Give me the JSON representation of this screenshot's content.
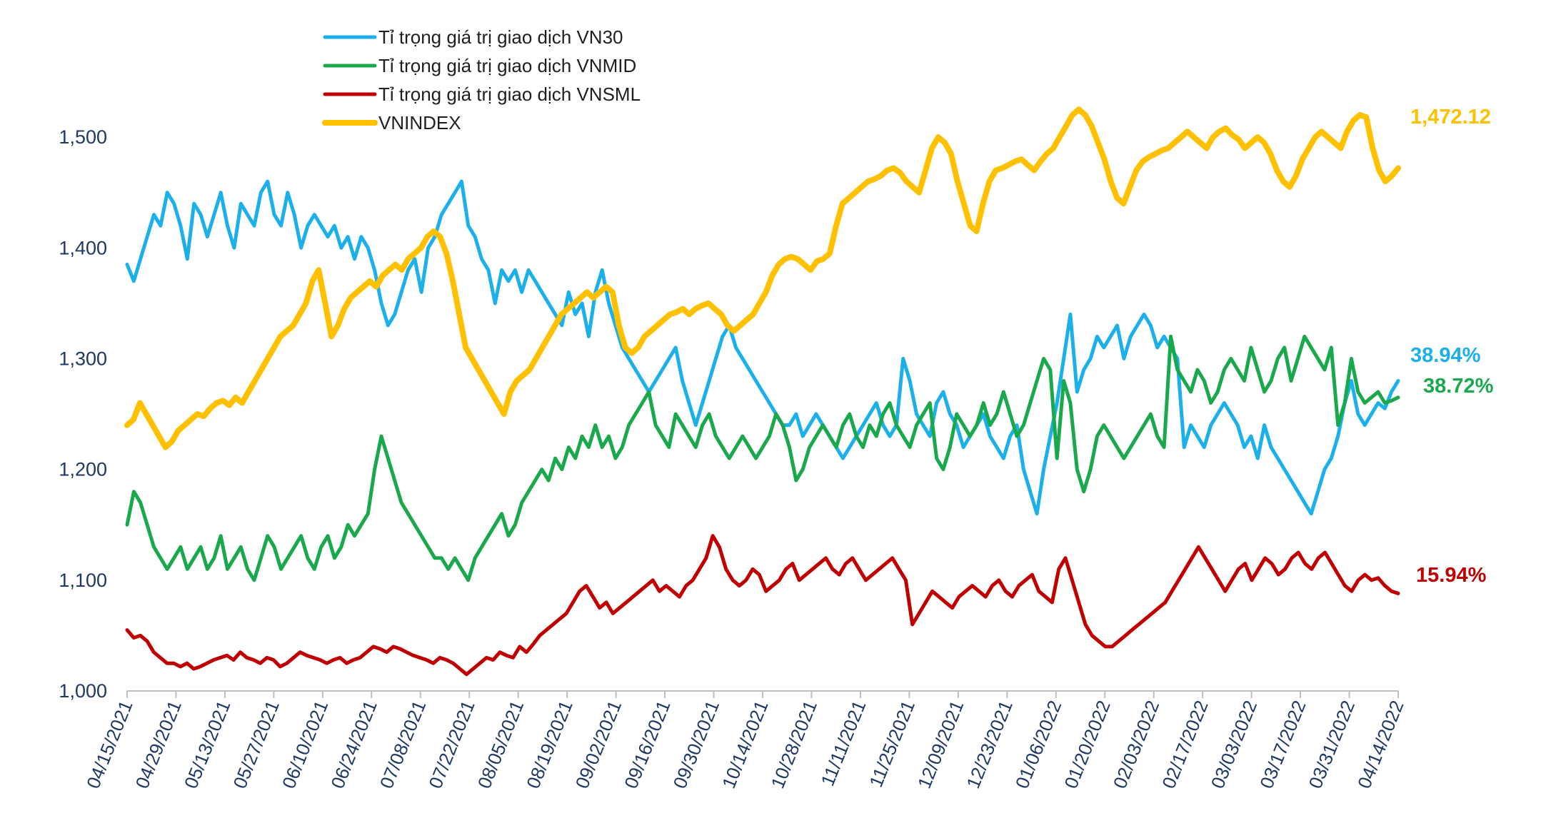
{
  "colors": {
    "vn30": "#1cb0ea",
    "vnmid": "#1aa84c",
    "vnsml": "#c00000",
    "vnindex": "#ffc000",
    "axis": "#1f3864"
  },
  "chart_data": {
    "type": "line",
    "x_start": "04/15/2021",
    "x_end": "04/14/2022",
    "x_ticks": [
      "04/15/2021",
      "04/29/2021",
      "05/13/2021",
      "05/27/2021",
      "06/10/2021",
      "06/24/2021",
      "07/08/2021",
      "07/22/2021",
      "08/05/2021",
      "08/19/2021",
      "09/02/2021",
      "09/16/2021",
      "09/30/2021",
      "10/14/2021",
      "10/28/2021",
      "11/11/2021",
      "11/25/2021",
      "12/09/2021",
      "12/23/2021",
      "01/06/2022",
      "01/20/2022",
      "02/03/2022",
      "02/17/2022",
      "03/03/2022",
      "03/17/2022",
      "03/31/2022",
      "04/14/2022"
    ],
    "y_ticks": [
      "1,000",
      "1,100",
      "1,200",
      "1,300",
      "1,400",
      "1,500"
    ],
    "ylim": [
      1000,
      1540
    ],
    "legend": "top-left",
    "series": [
      {
        "key": "vn30",
        "name": "Tỉ trọng giá trị giao dịch VN30",
        "end_label": "38.94%",
        "values": [
          1385,
          1370,
          1390,
          1410,
          1430,
          1420,
          1450,
          1440,
          1420,
          1390,
          1440,
          1430,
          1410,
          1430,
          1450,
          1420,
          1400,
          1440,
          1430,
          1420,
          1450,
          1460,
          1430,
          1420,
          1450,
          1430,
          1400,
          1420,
          1430,
          1420,
          1410,
          1420,
          1400,
          1410,
          1390,
          1410,
          1400,
          1380,
          1350,
          1330,
          1340,
          1360,
          1380,
          1390,
          1360,
          1400,
          1410,
          1430,
          1440,
          1450,
          1460,
          1420,
          1410,
          1390,
          1380,
          1350,
          1380,
          1370,
          1380,
          1360,
          1380,
          1370,
          1360,
          1350,
          1340,
          1330,
          1360,
          1340,
          1350,
          1320,
          1360,
          1380,
          1350,
          1330,
          1310,
          1300,
          1290,
          1280,
          1270,
          1280,
          1290,
          1300,
          1310,
          1280,
          1260,
          1240,
          1260,
          1280,
          1300,
          1320,
          1330,
          1310,
          1300,
          1290,
          1280,
          1270,
          1260,
          1250,
          1240,
          1240,
          1250,
          1230,
          1240,
          1250,
          1240,
          1230,
          1220,
          1210,
          1220,
          1230,
          1240,
          1250,
          1260,
          1240,
          1230,
          1240,
          1300,
          1280,
          1250,
          1240,
          1230,
          1260,
          1270,
          1250,
          1240,
          1220,
          1230,
          1240,
          1250,
          1230,
          1220,
          1210,
          1230,
          1240,
          1200,
          1180,
          1160,
          1200,
          1230,
          1260,
          1300,
          1340,
          1270,
          1290,
          1300,
          1320,
          1310,
          1320,
          1330,
          1300,
          1320,
          1330,
          1340,
          1330,
          1310,
          1320,
          1310,
          1300,
          1220,
          1240,
          1230,
          1220,
          1240,
          1250,
          1260,
          1250,
          1240,
          1220,
          1230,
          1210,
          1240,
          1220,
          1210,
          1200,
          1190,
          1180,
          1170,
          1160,
          1180,
          1200,
          1210,
          1230,
          1260,
          1280,
          1250,
          1240,
          1250,
          1260,
          1255,
          1270,
          1280
        ],
        "values_note": ""
      },
      {
        "key": "vnmid",
        "name": "Tỉ trọng giá trị giao dịch VNMID",
        "end_label": "38.72%",
        "values": [
          1150,
          1180,
          1170,
          1150,
          1130,
          1120,
          1110,
          1120,
          1130,
          1110,
          1120,
          1130,
          1110,
          1120,
          1140,
          1110,
          1120,
          1130,
          1110,
          1100,
          1120,
          1140,
          1130,
          1110,
          1120,
          1130,
          1140,
          1120,
          1110,
          1130,
          1140,
          1120,
          1130,
          1150,
          1140,
          1150,
          1160,
          1200,
          1230,
          1210,
          1190,
          1170,
          1160,
          1150,
          1140,
          1130,
          1120,
          1120,
          1110,
          1120,
          1110,
          1100,
          1120,
          1130,
          1140,
          1150,
          1160,
          1140,
          1150,
          1170,
          1180,
          1190,
          1200,
          1190,
          1210,
          1200,
          1220,
          1210,
          1230,
          1220,
          1240,
          1220,
          1230,
          1210,
          1220,
          1240,
          1250,
          1260,
          1270,
          1240,
          1230,
          1220,
          1250,
          1240,
          1230,
          1220,
          1240,
          1250,
          1230,
          1220,
          1210,
          1220,
          1230,
          1220,
          1210,
          1220,
          1230,
          1250,
          1240,
          1220,
          1190,
          1200,
          1220,
          1230,
          1240,
          1230,
          1220,
          1240,
          1250,
          1230,
          1220,
          1240,
          1230,
          1250,
          1260,
          1240,
          1230,
          1220,
          1240,
          1250,
          1260,
          1210,
          1200,
          1220,
          1250,
          1240,
          1230,
          1240,
          1260,
          1240,
          1250,
          1270,
          1250,
          1230,
          1240,
          1260,
          1280,
          1300,
          1290,
          1210,
          1280,
          1260,
          1200,
          1180,
          1200,
          1230,
          1240,
          1230,
          1220,
          1210,
          1220,
          1230,
          1240,
          1250,
          1230,
          1220,
          1320,
          1290,
          1280,
          1270,
          1290,
          1280,
          1260,
          1270,
          1290,
          1300,
          1290,
          1280,
          1310,
          1290,
          1270,
          1280,
          1300,
          1310,
          1280,
          1300,
          1320,
          1310,
          1300,
          1290,
          1310,
          1240,
          1260,
          1300,
          1270,
          1260,
          1265,
          1270,
          1260,
          1262,
          1265
        ],
        "values_note": ""
      },
      {
        "key": "vnsml",
        "name": "Tỉ trọng giá trị giao dịch VNSML",
        "end_label": "15.94%",
        "values": [
          1055,
          1048,
          1050,
          1045,
          1035,
          1030,
          1025,
          1025,
          1022,
          1025,
          1020,
          1022,
          1025,
          1028,
          1030,
          1032,
          1028,
          1035,
          1030,
          1028,
          1025,
          1030,
          1028,
          1022,
          1025,
          1030,
          1035,
          1032,
          1030,
          1028,
          1025,
          1028,
          1030,
          1025,
          1028,
          1030,
          1035,
          1040,
          1038,
          1035,
          1040,
          1038,
          1035,
          1032,
          1030,
          1028,
          1025,
          1030,
          1028,
          1025,
          1020,
          1015,
          1020,
          1025,
          1030,
          1028,
          1035,
          1032,
          1030,
          1040,
          1035,
          1042,
          1050,
          1055,
          1060,
          1065,
          1070,
          1080,
          1090,
          1095,
          1085,
          1075,
          1080,
          1070,
          1075,
          1080,
          1085,
          1090,
          1095,
          1100,
          1090,
          1095,
          1090,
          1085,
          1095,
          1100,
          1110,
          1120,
          1140,
          1130,
          1110,
          1100,
          1095,
          1100,
          1110,
          1105,
          1090,
          1095,
          1100,
          1110,
          1115,
          1100,
          1105,
          1110,
          1115,
          1120,
          1110,
          1105,
          1115,
          1120,
          1110,
          1100,
          1105,
          1110,
          1115,
          1120,
          1110,
          1100,
          1060,
          1070,
          1080,
          1090,
          1085,
          1080,
          1075,
          1085,
          1090,
          1095,
          1090,
          1085,
          1095,
          1100,
          1090,
          1085,
          1095,
          1100,
          1105,
          1090,
          1085,
          1080,
          1110,
          1120,
          1100,
          1080,
          1060,
          1050,
          1045,
          1040,
          1040,
          1045,
          1050,
          1055,
          1060,
          1065,
          1070,
          1075,
          1080,
          1090,
          1100,
          1110,
          1120,
          1130,
          1120,
          1110,
          1100,
          1090,
          1100,
          1110,
          1115,
          1100,
          1110,
          1120,
          1115,
          1105,
          1110,
          1120,
          1125,
          1115,
          1110,
          1120,
          1125,
          1115,
          1105,
          1095,
          1090,
          1100,
          1105,
          1100,
          1102,
          1095,
          1090,
          1088
        ],
        "values_note": ""
      },
      {
        "key": "vnindex",
        "name": "VNINDEX",
        "end_label": "1,472.12",
        "values": [
          1240,
          1245,
          1260,
          1250,
          1240,
          1230,
          1220,
          1225,
          1235,
          1240,
          1245,
          1250,
          1248,
          1255,
          1260,
          1262,
          1258,
          1265,
          1260,
          1270,
          1280,
          1290,
          1300,
          1310,
          1320,
          1325,
          1330,
          1340,
          1350,
          1370,
          1380,
          1350,
          1320,
          1330,
          1345,
          1355,
          1360,
          1365,
          1370,
          1365,
          1375,
          1380,
          1385,
          1380,
          1390,
          1395,
          1400,
          1410,
          1415,
          1410,
          1395,
          1370,
          1340,
          1310,
          1300,
          1290,
          1280,
          1270,
          1260,
          1250,
          1270,
          1280,
          1285,
          1290,
          1300,
          1310,
          1320,
          1330,
          1340,
          1345,
          1350,
          1355,
          1360,
          1355,
          1360,
          1365,
          1360,
          1330,
          1310,
          1305,
          1310,
          1320,
          1325,
          1330,
          1335,
          1340,
          1342,
          1345,
          1340,
          1345,
          1348,
          1350,
          1345,
          1340,
          1330,
          1325,
          1330,
          1335,
          1340,
          1350,
          1360,
          1375,
          1385,
          1390,
          1392,
          1390,
          1385,
          1380,
          1388,
          1390,
          1395,
          1420,
          1440,
          1445,
          1450,
          1455,
          1460,
          1462,
          1465,
          1470,
          1472,
          1468,
          1460,
          1455,
          1450,
          1470,
          1490,
          1500,
          1495,
          1485,
          1460,
          1440,
          1420,
          1415,
          1440,
          1460,
          1470,
          1472,
          1475,
          1478,
          1480,
          1475,
          1470,
          1478,
          1485,
          1490,
          1500,
          1510,
          1520,
          1525,
          1520,
          1510,
          1495,
          1480,
          1460,
          1445,
          1440,
          1455,
          1470,
          1478,
          1482,
          1485,
          1488,
          1490,
          1495,
          1500,
          1505,
          1500,
          1495,
          1490,
          1500,
          1505,
          1508,
          1502,
          1498,
          1490,
          1495,
          1500,
          1495,
          1485,
          1470,
          1460,
          1455,
          1465,
          1480,
          1490,
          1500,
          1505,
          1500,
          1495,
          1490,
          1505,
          1515,
          1520,
          1518,
          1490,
          1470,
          1460,
          1465,
          1472
        ],
        "values_note": ""
      }
    ]
  }
}
